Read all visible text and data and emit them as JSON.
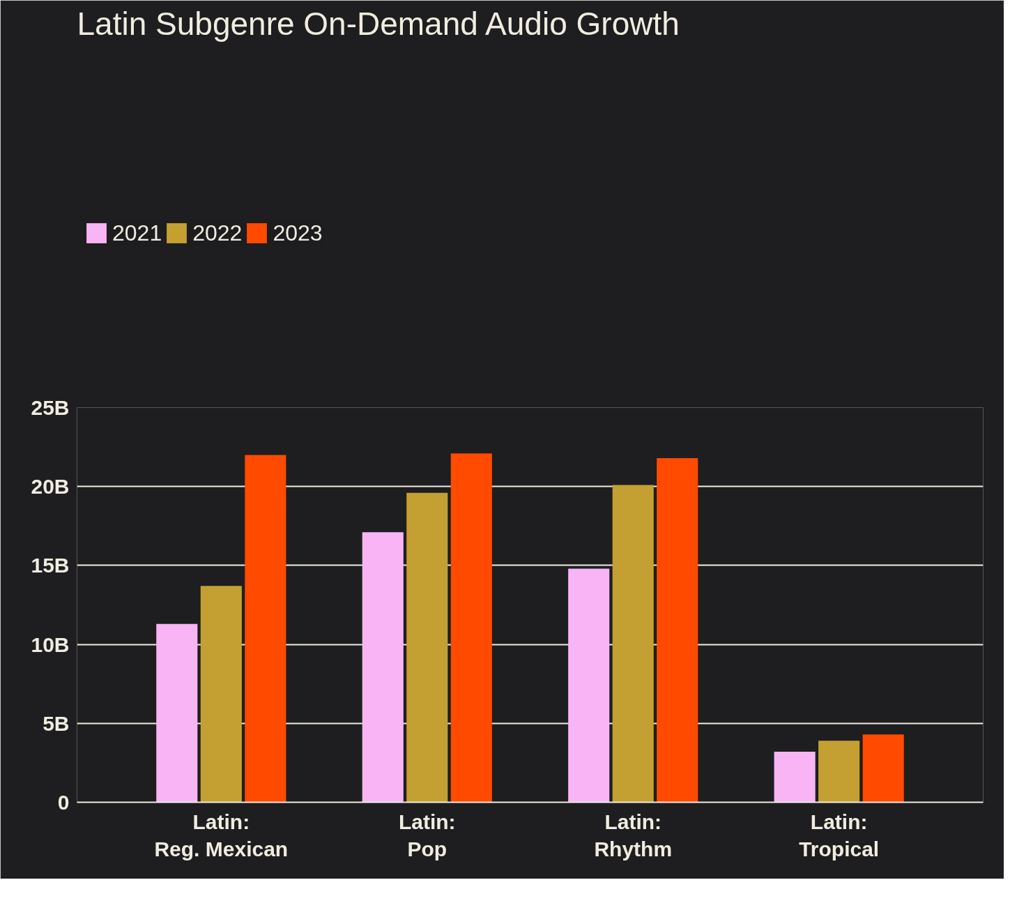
{
  "chart_data": {
    "type": "bar",
    "title": "Latin Subgenre On-Demand Audio Growth",
    "categories": [
      "Latin:\nReg. Mexican",
      "Latin:\nPop",
      "Latin:\nRhythm",
      "Latin:\nTropical"
    ],
    "series": [
      {
        "name": "2021",
        "color": "#f9b4f6",
        "values": [
          11.3,
          17.1,
          14.8,
          3.2
        ]
      },
      {
        "name": "2022",
        "color": "#c4a032",
        "values": [
          13.7,
          19.6,
          20.1,
          3.9
        ]
      },
      {
        "name": "2023",
        "color": "#ff4a00",
        "values": [
          22.0,
          22.1,
          21.8,
          4.3
        ]
      }
    ],
    "ylim": [
      0,
      25
    ],
    "yticks": [
      {
        "value": 0,
        "label": "0"
      },
      {
        "value": 5,
        "label": "5B"
      },
      {
        "value": 10,
        "label": "10B"
      },
      {
        "value": 15,
        "label": "15B"
      },
      {
        "value": 20,
        "label": "20B"
      },
      {
        "value": 25,
        "label": "25B"
      }
    ],
    "grid": "y",
    "legend": "top left"
  }
}
